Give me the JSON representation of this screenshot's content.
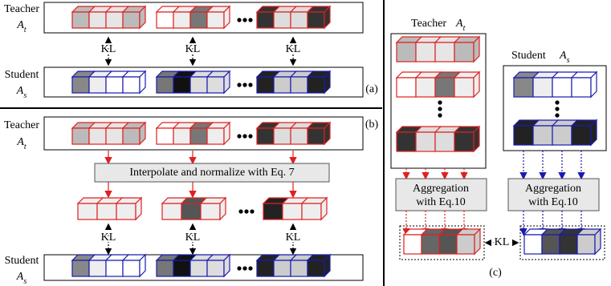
{
  "panel_a": {
    "teacher": {
      "label": "Teacher",
      "symbol": "A",
      "subscript": "t"
    },
    "student": {
      "label": "Student",
      "symbol": "A",
      "subscript": "s"
    },
    "kl_labels": [
      "KL",
      "KL",
      "KL"
    ],
    "tag": "(a)"
  },
  "panel_b": {
    "teacher": {
      "label": "Teacher",
      "symbol": "A",
      "subscript": "t"
    },
    "student": {
      "label": "Student",
      "symbol": "A",
      "subscript": "s"
    },
    "interpolate": "Interpolate and normalize with Eq. 7",
    "kl_labels": [
      "KL",
      "KL",
      "KL"
    ],
    "tag": "(b)"
  },
  "panel_c": {
    "teacher": {
      "label": "Teacher",
      "symbol": "A",
      "subscript": "t"
    },
    "student": {
      "label": "Student",
      "symbol": "A",
      "subscript": "s"
    },
    "aggregation": [
      [
        "Aggregation",
        "with Eq.10"
      ],
      [
        "Aggregation",
        "with Eq.10"
      ]
    ],
    "kl": "KL",
    "tag": "(c)"
  }
}
